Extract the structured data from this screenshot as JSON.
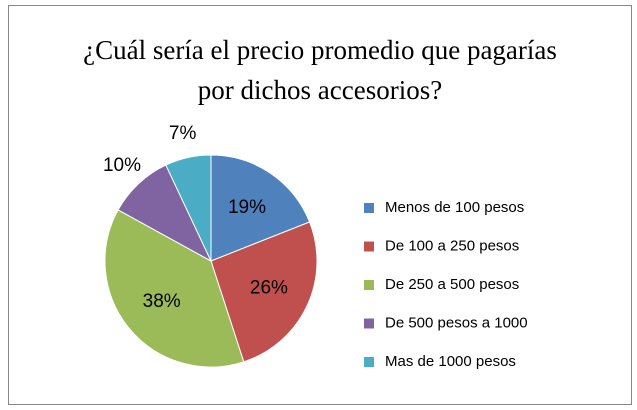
{
  "chart_data": {
    "type": "pie",
    "title": "¿Cuál sería el precio promedio que pagarías por dichos accesorios?",
    "categories": [
      "Menos de 100 pesos",
      "De 100 a 250 pesos",
      "De 250 a 500 pesos",
      "De 500 pesos a 1000",
      "Mas de 1000 pesos"
    ],
    "values": [
      19,
      26,
      38,
      10,
      7
    ],
    "value_labels": [
      "19%",
      "26%",
      "38%",
      "10%",
      "7%"
    ],
    "colors": [
      "#4f81bd",
      "#c0504d",
      "#9bbb59",
      "#8064a2",
      "#4bacc6"
    ],
    "legend": "right"
  }
}
